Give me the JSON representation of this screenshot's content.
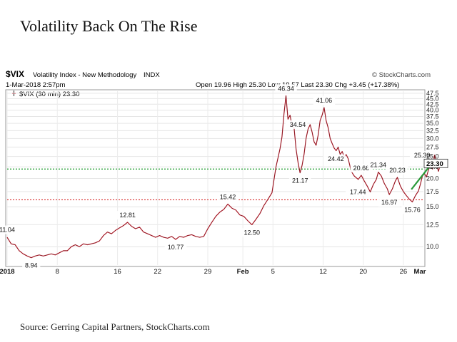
{
  "page": {
    "title": "Volatility Back On The Rise",
    "source": "Source: Gerring Capital Partners, StockCharts.com"
  },
  "chart_data": {
    "type": "line",
    "header": {
      "symbol": "$VIX",
      "name": "Volatility Index - New Methodology",
      "exchange": "INDX",
      "provider": "© StockCharts.com",
      "datetime": "1-Mar-2018 2:57pm",
      "open_label": "Open",
      "open": "19.96",
      "high_label": "High",
      "high": "25.30",
      "low_label": "Low",
      "low": "19.57",
      "last_label": "Last",
      "last": "23.30",
      "chg_label": "Chg",
      "chg": "+3.45 (+17.38%)"
    },
    "legend": "$VIX (30 min) 23.30",
    "y_scale": "log",
    "ylim": [
      8.3,
      48.5
    ],
    "y_ticks": [
      10.0,
      12.5,
      15.0,
      17.5,
      20.0,
      22.5,
      25.0,
      27.5,
      30.0,
      32.5,
      35.0,
      37.5,
      40.0,
      42.5,
      45.0,
      47.5
    ],
    "y_tick_labels": [
      "10.0",
      "12.5",
      "15.0",
      "17.5",
      "20.0",
      "22.5",
      "25.0",
      "27.5",
      "30.0",
      "32.5",
      "35.0",
      "37.5",
      "40.0",
      "42.5",
      "45.0",
      "47.5"
    ],
    "xlim": [
      0,
      41.5
    ],
    "x_ticks": [
      {
        "x": 0,
        "label": "2018",
        "bold": true
      },
      {
        "x": 5,
        "label": "8",
        "bold": false
      },
      {
        "x": 11,
        "label": "16",
        "bold": false
      },
      {
        "x": 15,
        "label": "22",
        "bold": false
      },
      {
        "x": 20,
        "label": "29",
        "bold": false
      },
      {
        "x": 23.5,
        "label": "Feb",
        "bold": true
      },
      {
        "x": 26.5,
        "label": "5",
        "bold": false
      },
      {
        "x": 31.5,
        "label": "12",
        "bold": false
      },
      {
        "x": 35.5,
        "label": "20",
        "bold": false
      },
      {
        "x": 39.5,
        "label": "26",
        "bold": false
      },
      {
        "x": 43,
        "label": "Mar",
        "bold": true
      }
    ],
    "series": [
      {
        "color": "#cc1b2b",
        "points": [
          [
            0,
            11.0
          ],
          [
            0.4,
            10.3
          ],
          [
            0.8,
            10.2
          ],
          [
            1.2,
            9.6
          ],
          [
            1.6,
            9.3
          ],
          [
            2.0,
            9.1
          ],
          [
            2.4,
            8.94
          ],
          [
            2.8,
            9.1
          ],
          [
            3.2,
            9.2
          ],
          [
            3.6,
            9.1
          ],
          [
            4.0,
            9.2
          ],
          [
            4.4,
            9.3
          ],
          [
            4.8,
            9.2
          ],
          [
            5.2,
            9.4
          ],
          [
            5.6,
            9.6
          ],
          [
            6.0,
            9.6
          ],
          [
            6.4,
            10.0
          ],
          [
            6.8,
            10.2
          ],
          [
            7.2,
            10.0
          ],
          [
            7.6,
            10.3
          ],
          [
            8.0,
            10.2
          ],
          [
            8.4,
            10.3
          ],
          [
            8.8,
            10.4
          ],
          [
            9.2,
            10.6
          ],
          [
            9.6,
            11.2
          ],
          [
            10.0,
            11.6
          ],
          [
            10.4,
            11.4
          ],
          [
            10.8,
            11.8
          ],
          [
            11.2,
            12.1
          ],
          [
            11.6,
            12.4
          ],
          [
            12.0,
            12.81
          ],
          [
            12.4,
            12.3
          ],
          [
            12.8,
            12.0
          ],
          [
            13.2,
            12.2
          ],
          [
            13.6,
            11.6
          ],
          [
            14.0,
            11.4
          ],
          [
            14.4,
            11.2
          ],
          [
            14.8,
            11.0
          ],
          [
            15.2,
            11.2
          ],
          [
            15.6,
            11.0
          ],
          [
            16.0,
            10.9
          ],
          [
            16.4,
            11.1
          ],
          [
            16.8,
            10.77
          ],
          [
            17.2,
            11.1
          ],
          [
            17.6,
            11.0
          ],
          [
            18.0,
            11.2
          ],
          [
            18.4,
            11.3
          ],
          [
            18.8,
            11.1
          ],
          [
            19.2,
            11.0
          ],
          [
            19.6,
            11.1
          ],
          [
            20.0,
            12.0
          ],
          [
            20.4,
            12.8
          ],
          [
            20.8,
            13.6
          ],
          [
            21.2,
            14.2
          ],
          [
            21.6,
            14.6
          ],
          [
            22.0,
            15.42
          ],
          [
            22.4,
            14.8
          ],
          [
            22.8,
            14.5
          ],
          [
            23.2,
            13.8
          ],
          [
            23.6,
            13.6
          ],
          [
            24.0,
            13.0
          ],
          [
            24.4,
            12.5
          ],
          [
            24.8,
            13.2
          ],
          [
            25.2,
            14.0
          ],
          [
            25.6,
            15.2
          ],
          [
            26.0,
            16.2
          ],
          [
            26.4,
            17.3
          ],
          [
            26.8,
            22.5
          ],
          [
            27.2,
            27.0
          ],
          [
            27.4,
            30.5
          ],
          [
            27.6,
            38.5
          ],
          [
            27.8,
            46.34
          ],
          [
            28.0,
            36.5
          ],
          [
            28.2,
            38.0
          ],
          [
            28.4,
            34.0
          ],
          [
            28.6,
            33.5
          ],
          [
            28.8,
            27.0
          ],
          [
            29.0,
            23.5
          ],
          [
            29.2,
            21.17
          ],
          [
            29.4,
            22.8
          ],
          [
            29.6,
            25.5
          ],
          [
            29.8,
            30.0
          ],
          [
            30.0,
            33.0
          ],
          [
            30.2,
            34.54
          ],
          [
            30.4,
            32.0
          ],
          [
            30.6,
            29.0
          ],
          [
            30.8,
            28.0
          ],
          [
            31.0,
            31.0
          ],
          [
            31.2,
            36.0
          ],
          [
            31.4,
            38.0
          ],
          [
            31.6,
            41.06
          ],
          [
            31.8,
            36.0
          ],
          [
            32.0,
            33.5
          ],
          [
            32.2,
            30.0
          ],
          [
            32.4,
            28.5
          ],
          [
            32.6,
            27.2
          ],
          [
            32.8,
            26.5
          ],
          [
            33.0,
            27.5
          ],
          [
            33.2,
            25.5
          ],
          [
            33.4,
            26.3
          ],
          [
            33.6,
            24.9
          ],
          [
            33.8,
            25.5
          ],
          [
            34.0,
            24.42
          ],
          [
            34.3,
            21.5
          ],
          [
            34.6,
            20.5
          ],
          [
            35.0,
            19.8
          ],
          [
            35.3,
            20.66
          ],
          [
            35.6,
            19.5
          ],
          [
            35.9,
            18.5
          ],
          [
            36.2,
            17.44
          ],
          [
            36.5,
            18.8
          ],
          [
            36.8,
            19.8
          ],
          [
            37.0,
            21.34
          ],
          [
            37.3,
            20.5
          ],
          [
            37.6,
            19.0
          ],
          [
            37.9,
            18.0
          ],
          [
            38.1,
            16.97
          ],
          [
            38.4,
            18.0
          ],
          [
            38.7,
            19.5
          ],
          [
            38.9,
            20.23
          ],
          [
            39.2,
            18.5
          ],
          [
            39.5,
            17.5
          ],
          [
            39.8,
            16.8
          ],
          [
            40.1,
            16.2
          ],
          [
            40.4,
            15.76
          ],
          [
            40.7,
            16.8
          ],
          [
            41.0,
            17.6
          ],
          [
            41.2,
            18.9
          ],
          [
            41.4,
            20.5
          ],
          [
            41.6,
            21.0
          ],
          [
            41.8,
            20.3
          ],
          [
            42.0,
            21.8
          ],
          [
            42.2,
            23.0
          ],
          [
            42.4,
            22.0
          ],
          [
            42.6,
            25.3
          ],
          [
            42.8,
            23.0
          ],
          [
            43.0,
            21.5
          ],
          [
            43.2,
            23.3
          ]
        ]
      }
    ],
    "annotations": [
      {
        "x": 0,
        "y": 11.04,
        "text": "11.04",
        "pos": "above"
      },
      {
        "x": 2.4,
        "y": 8.94,
        "text": "8.94",
        "pos": "below"
      },
      {
        "x": 12.0,
        "y": 12.81,
        "text": "12.81",
        "pos": "above"
      },
      {
        "x": 16.8,
        "y": 10.77,
        "text": "10.77",
        "pos": "below"
      },
      {
        "x": 22.0,
        "y": 15.42,
        "text": "15.42",
        "pos": "above"
      },
      {
        "x": 24.4,
        "y": 12.5,
        "text": "12.50",
        "pos": "below"
      },
      {
        "x": 27.8,
        "y": 46.34,
        "text": "46.34",
        "pos": "above"
      },
      {
        "x": 30.2,
        "y": 34.54,
        "text": "34.54",
        "pos": "left"
      },
      {
        "x": 29.2,
        "y": 21.17,
        "text": "21.17",
        "pos": "below"
      },
      {
        "x": 31.6,
        "y": 41.06,
        "text": "41.06",
        "pos": "above"
      },
      {
        "x": 34.0,
        "y": 24.42,
        "text": "24.42",
        "pos": "left"
      },
      {
        "x": 35.3,
        "y": 20.66,
        "text": "20.66",
        "pos": "above"
      },
      {
        "x": 37.0,
        "y": 21.34,
        "text": "21.34",
        "pos": "above"
      },
      {
        "x": 36.2,
        "y": 17.44,
        "text": "17.44",
        "pos": "left"
      },
      {
        "x": 38.1,
        "y": 16.97,
        "text": "16.97",
        "pos": "below"
      },
      {
        "x": 38.9,
        "y": 20.23,
        "text": "20.23",
        "pos": "above"
      },
      {
        "x": 40.4,
        "y": 15.76,
        "text": "15.76",
        "pos": "below"
      },
      {
        "x": 42.6,
        "y": 25.3,
        "text": "25.30",
        "pos": "left"
      }
    ],
    "reference_lines": [
      {
        "y": 22.0,
        "color": "#1a9a2a",
        "style": "dotted"
      },
      {
        "y": 16.1,
        "color": "#d62a2a",
        "style": "dotted"
      }
    ],
    "trend_arrow": {
      "color": "#2a9a3a",
      "from": [
        40.3,
        17.9
      ],
      "to": [
        42.5,
        23.8
      ]
    },
    "last_value": "23.30",
    "grid": true
  }
}
